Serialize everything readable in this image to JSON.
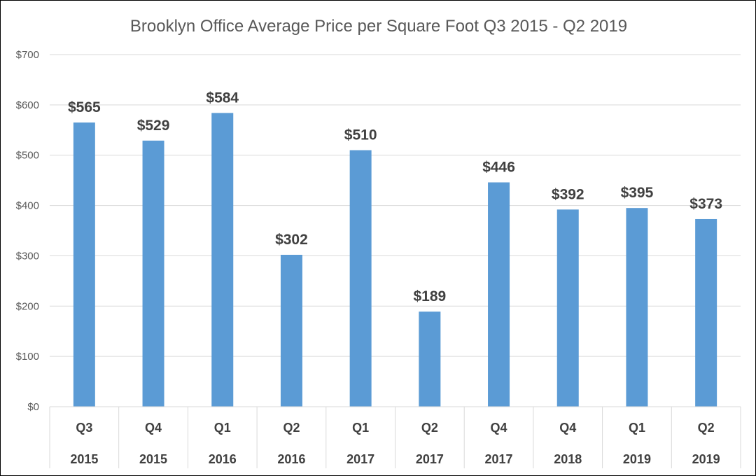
{
  "chart_data": {
    "type": "bar",
    "title": "Brooklyn Office Average Price per Square Foot Q3 2015 - Q2 2019",
    "categories": [
      {
        "quarter": "Q3",
        "year": "2015"
      },
      {
        "quarter": "Q4",
        "year": "2015"
      },
      {
        "quarter": "Q1",
        "year": "2016"
      },
      {
        "quarter": "Q2",
        "year": "2016"
      },
      {
        "quarter": "Q1",
        "year": "2017"
      },
      {
        "quarter": "Q2",
        "year": "2017"
      },
      {
        "quarter": "Q4",
        "year": "2017"
      },
      {
        "quarter": "Q4",
        "year": "2018"
      },
      {
        "quarter": "Q1",
        "year": "2019"
      },
      {
        "quarter": "Q2",
        "year": "2019"
      }
    ],
    "values": [
      565,
      529,
      584,
      302,
      510,
      189,
      446,
      392,
      395,
      373
    ],
    "data_labels": [
      "$565",
      "$529",
      "$584",
      "$302",
      "$510",
      "$189",
      "$446",
      "$392",
      "$395",
      "$373"
    ],
    "ylim": [
      0,
      700
    ],
    "yticks": [
      0,
      100,
      200,
      300,
      400,
      500,
      600,
      700
    ],
    "ytick_labels": [
      "$0",
      "$100",
      "$200",
      "$300",
      "$400",
      "$500",
      "$600",
      "$700"
    ],
    "grid": true,
    "legend": "none",
    "colors": {
      "bar": "#5B9BD5",
      "grid": "#D9D9D9",
      "text": "#595959",
      "label": "#404040"
    }
  }
}
